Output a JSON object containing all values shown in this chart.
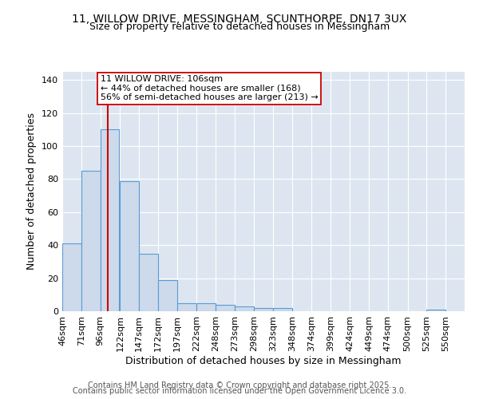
{
  "title1": "11, WILLOW DRIVE, MESSINGHAM, SCUNTHORPE, DN17 3UX",
  "title2": "Size of property relative to detached houses in Messingham",
  "xlabel": "Distribution of detached houses by size in Messingham",
  "ylabel": "Number of detached properties",
  "bin_labels": [
    "46sqm",
    "71sqm",
    "96sqm",
    "122sqm",
    "147sqm",
    "172sqm",
    "197sqm",
    "222sqm",
    "248sqm",
    "273sqm",
    "298sqm",
    "323sqm",
    "348sqm",
    "374sqm",
    "399sqm",
    "424sqm",
    "449sqm",
    "474sqm",
    "500sqm",
    "525sqm",
    "550sqm"
  ],
  "bar_values": [
    41,
    85,
    110,
    79,
    35,
    19,
    5,
    5,
    4,
    3,
    2,
    2,
    0,
    0,
    0,
    0,
    0,
    0,
    0,
    1,
    0
  ],
  "bin_edges": [
    46,
    71,
    96,
    122,
    147,
    172,
    197,
    222,
    248,
    273,
    298,
    323,
    348,
    374,
    399,
    424,
    449,
    474,
    500,
    525,
    550
  ],
  "bar_color": "#ccdaeb",
  "bar_edge_color": "#5b9bd5",
  "red_line_x": 106,
  "annotation_line1": "11 WILLOW DRIVE: 106sqm",
  "annotation_line2": "← 44% of detached houses are smaller (168)",
  "annotation_line3": "56% of semi-detached houses are larger (213) →",
  "annotation_box_color": "#ffffff",
  "annotation_border_color": "#cc0000",
  "annotation_text_color": "#000000",
  "red_line_color": "#cc0000",
  "ylim": [
    0,
    145
  ],
  "yticks": [
    0,
    20,
    40,
    60,
    80,
    100,
    120,
    140
  ],
  "background_color": "#dde6f0",
  "footer1": "Contains HM Land Registry data © Crown copyright and database right 2025.",
  "footer2": "Contains public sector information licensed under the Open Government Licence 3.0.",
  "title_fontsize": 10,
  "subtitle_fontsize": 9,
  "axis_label_fontsize": 9,
  "tick_fontsize": 8,
  "annotation_fontsize": 8,
  "footer_fontsize": 7
}
